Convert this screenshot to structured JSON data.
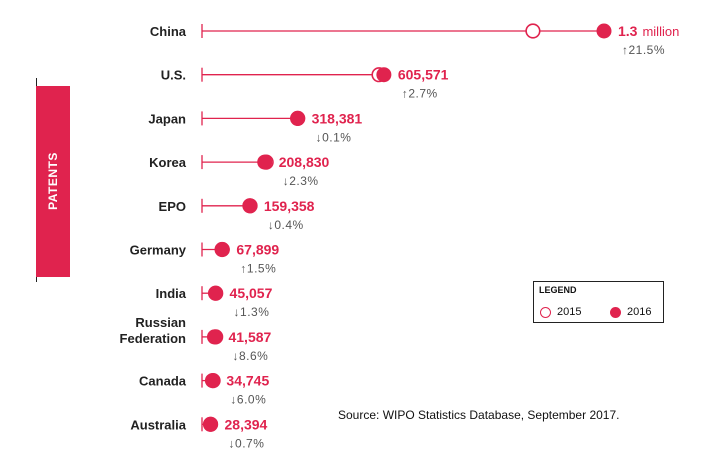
{
  "side_tab": {
    "label": "PATENTS"
  },
  "legend": {
    "title": "LEGEND",
    "items": [
      {
        "label": "2015",
        "style": "open"
      },
      {
        "label": "2016",
        "style": "filled"
      }
    ]
  },
  "source": "Source: WIPO Statistics Database, September 2017.",
  "colors": {
    "accent": "#e0234e",
    "text": "#222222",
    "muted": "#555555"
  },
  "chart_data": {
    "type": "dot-plot",
    "series": [
      {
        "name": "2015",
        "values": [
          1101864,
          589410,
          318721,
          213694,
          160022,
          66893,
          45658,
          45517,
          36964,
          28605
        ]
      },
      {
        "name": "2016",
        "values": [
          1338503,
          605571,
          318381,
          208830,
          159358,
          67899,
          45057,
          41587,
          34745,
          28394
        ]
      }
    ],
    "categories": [
      {
        "name": [
          "China"
        ],
        "label": "1.3",
        "unit": "million",
        "change": "↑21.5%"
      },
      {
        "name": [
          "U.S."
        ],
        "label": "605,571",
        "unit": "",
        "change": "↑2.7%"
      },
      {
        "name": [
          "Japan"
        ],
        "label": "318,381",
        "unit": "",
        "change": "↓0.1%"
      },
      {
        "name": [
          "Korea"
        ],
        "label": "208,830",
        "unit": "",
        "change": "↓2.3%"
      },
      {
        "name": [
          "EPO"
        ],
        "label": "159,358",
        "unit": "",
        "change": "↓0.4%"
      },
      {
        "name": [
          "Germany"
        ],
        "label": "67,899",
        "unit": "",
        "change": "↑1.5%"
      },
      {
        "name": [
          "India"
        ],
        "label": "45,057",
        "unit": "",
        "change": "↓1.3%"
      },
      {
        "name": [
          "Russian",
          "Federation"
        ],
        "label": "41,587",
        "unit": "",
        "change": "↓8.6%"
      },
      {
        "name": [
          "Canada"
        ],
        "label": "34,745",
        "unit": "",
        "change": "↓6.0%"
      },
      {
        "name": [
          "Australia"
        ],
        "label": "28,394",
        "unit": "",
        "change": "↓0.7%"
      }
    ]
  }
}
